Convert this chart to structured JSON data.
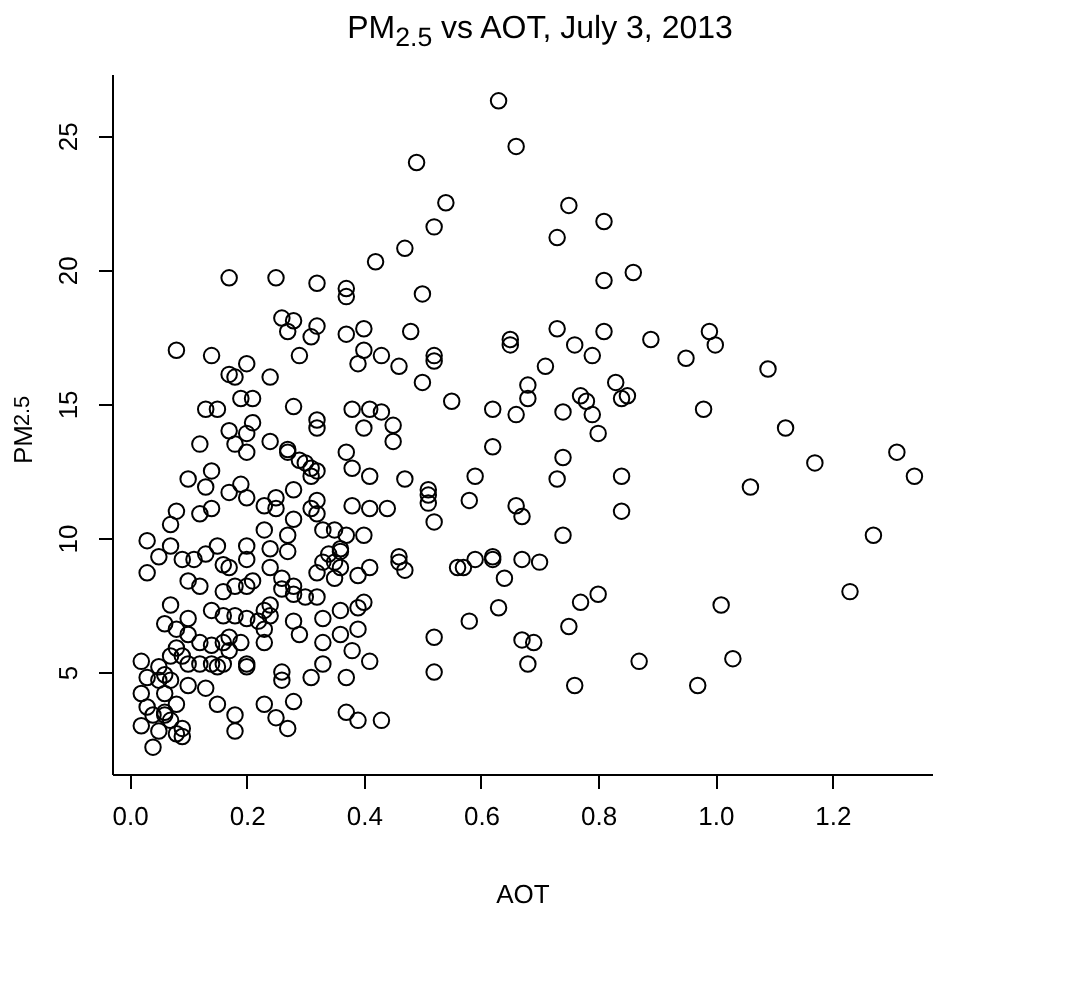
{
  "chart_data": {
    "type": "scatter",
    "title": "PM$_{2.5}$ vs AOT, July 3, 2013",
    "xlabel": "AOT",
    "ylabel": "PM$_{2.5}$",
    "marker": "circle",
    "grid": false,
    "xlim": [
      -0.03,
      1.37
    ],
    "ylim": [
      1.2,
      27.3
    ],
    "xticks": [
      {
        "value": 0,
        "label": "0.0"
      },
      {
        "value": 0.2,
        "label": "0.2"
      },
      {
        "value": 0.4,
        "label": "0.4"
      },
      {
        "value": 0.6,
        "label": "0.6"
      },
      {
        "value": 0.8,
        "label": "0.8"
      },
      {
        "value": 1,
        "label": "1.0"
      },
      {
        "value": 1.2,
        "label": "1.2"
      }
    ],
    "yticks": [
      5,
      10,
      15,
      20,
      25
    ],
    "series": [
      {
        "color": "#000000",
        "x": [
          0.63,
          0.66,
          0.49,
          0.54,
          0.52,
          0.42,
          0.47,
          0.5,
          0.75,
          0.73,
          0.81,
          0.81,
          0.37,
          0.37,
          0.37,
          0.4,
          0.39,
          0.4,
          0.43,
          0.46,
          0.48,
          0.5,
          0.52,
          0.52,
          0.55,
          0.65,
          0.65,
          0.73,
          0.76,
          0.79,
          0.81,
          0.71,
          0.68,
          0.68,
          0.66,
          0.62,
          0.74,
          0.77,
          0.78,
          0.79,
          0.8,
          0.83,
          0.38,
          0.41,
          0.43,
          0.4,
          0.45,
          0.45,
          0.37,
          0.38,
          0.41,
          0.47,
          0.38,
          0.41,
          0.44,
          0.51,
          0.51,
          0.51,
          0.52,
          0.62,
          0.59,
          0.58,
          0.66,
          0.67,
          0.74,
          0.73,
          0.74,
          0.35,
          0.36,
          0.37,
          0.4,
          0.39,
          0.41,
          0.46,
          0.46,
          0.47,
          0.56,
          0.57,
          0.59,
          0.62,
          0.62,
          0.64,
          0.67,
          0.7,
          0.63,
          0.58,
          0.52,
          0.52,
          0.67,
          0.69,
          0.68,
          0.75,
          0.77,
          0.8,
          0.76,
          0.36,
          0.39,
          0.4,
          0.39,
          0.36,
          0.38,
          0.41,
          0.37,
          0.37,
          0.39,
          0.43,
          0.86,
          0.89,
          0.95,
          0.99,
          1.0,
          1.09,
          0.84,
          0.85,
          0.98,
          1.12,
          1.17,
          1.31,
          1.34,
          1.06,
          0.84,
          0.84,
          1.27,
          1.23,
          1.01,
          0.87,
          1.03,
          0.97,
          0.17,
          0.25,
          0.32,
          0.08,
          0.14,
          0.26,
          0.28,
          0.27,
          0.32,
          0.31,
          0.2,
          0.17,
          0.18,
          0.24,
          0.29,
          0.19,
          0.21,
          0.13,
          0.15,
          0.28,
          0.32,
          0.32,
          0.21,
          0.17,
          0.2,
          0.18,
          0.2,
          0.12,
          0.24,
          0.27,
          0.27,
          0.29,
          0.3,
          0.31,
          0.32,
          0.31,
          0.1,
          0.14,
          0.13,
          0.19,
          0.17,
          0.2,
          0.23,
          0.25,
          0.28,
          0.32,
          0.08,
          0.12,
          0.14,
          0.07,
          0.03,
          0.05,
          0.03,
          0.07,
          0.09,
          0.11,
          0.13,
          0.15,
          0.16,
          0.17,
          0.2,
          0.2,
          0.1,
          0.12,
          0.16,
          0.18,
          0.2,
          0.21,
          0.24,
          0.27,
          0.27,
          0.24,
          0.23,
          0.25,
          0.26,
          0.26,
          0.28,
          0.3,
          0.32,
          0.28,
          0.07,
          0.06,
          0.08,
          0.1,
          0.1,
          0.14,
          0.16,
          0.18,
          0.2,
          0.22,
          0.23,
          0.24,
          0.24,
          0.23,
          0.23,
          0.28,
          0.29,
          0.33,
          0.33,
          0.17,
          0.19,
          0.12,
          0.14,
          0.16,
          0.17,
          0.08,
          0.09,
          0.1,
          0.07,
          0.12,
          0.14,
          0.15,
          0.16,
          0.2,
          0.2,
          0.02,
          0.03,
          0.05,
          0.05,
          0.06,
          0.1,
          0.13,
          0.15,
          0.02,
          0.03,
          0.02,
          0.04,
          0.06,
          0.06,
          0.08,
          0.07,
          0.09,
          0.08,
          0.09,
          0.04,
          0.05,
          0.06,
          0.07,
          0.26,
          0.26,
          0.28,
          0.23,
          0.25,
          0.27,
          0.18,
          0.18,
          0.31,
          0.33,
          0.33,
          0.34,
          0.36,
          0.32,
          0.35,
          0.28,
          0.31,
          0.32,
          0.35,
          0.36,
          0.33
        ],
        "values": [
          26.3,
          24.6,
          24.0,
          22.5,
          21.6,
          20.3,
          20.8,
          19.1,
          22.4,
          21.2,
          21.8,
          19.6,
          19.3,
          19.0,
          17.6,
          17.8,
          16.5,
          17.0,
          16.8,
          16.4,
          17.7,
          15.8,
          16.8,
          16.6,
          15.1,
          17.4,
          17.2,
          17.8,
          17.2,
          16.8,
          17.7,
          16.4,
          15.7,
          15.2,
          14.6,
          14.8,
          14.7,
          15.3,
          15.1,
          14.6,
          13.9,
          15.8,
          14.8,
          14.8,
          14.7,
          14.1,
          14.2,
          13.6,
          13.2,
          12.6,
          12.3,
          12.2,
          11.2,
          11.1,
          11.1,
          11.8,
          11.6,
          11.3,
          10.6,
          13.4,
          12.3,
          11.4,
          11.2,
          10.8,
          13.0,
          12.2,
          10.1,
          9.1,
          9.5,
          10.1,
          10.1,
          8.6,
          8.9,
          9.3,
          9.1,
          8.8,
          8.9,
          8.9,
          9.2,
          9.2,
          9.3,
          8.5,
          9.2,
          9.1,
          7.4,
          6.9,
          6.3,
          5.0,
          6.2,
          6.1,
          5.3,
          6.7,
          7.6,
          7.9,
          4.5,
          7.3,
          7.4,
          7.6,
          6.6,
          6.4,
          5.8,
          5.4,
          4.8,
          3.5,
          3.2,
          3.2,
          19.9,
          17.4,
          16.7,
          17.7,
          17.2,
          16.3,
          15.2,
          15.3,
          14.8,
          14.1,
          12.8,
          13.2,
          12.3,
          11.9,
          12.3,
          11.0,
          10.1,
          8.0,
          7.5,
          5.4,
          5.5,
          4.5,
          19.7,
          19.7,
          19.5,
          17.0,
          16.8,
          18.2,
          18.1,
          17.7,
          17.9,
          17.5,
          16.5,
          16.1,
          16.0,
          16.0,
          16.8,
          15.2,
          15.2,
          14.8,
          14.8,
          14.9,
          14.4,
          14.1,
          14.3,
          14.0,
          13.9,
          13.5,
          13.2,
          13.5,
          13.6,
          13.3,
          13.2,
          12.9,
          12.8,
          12.6,
          12.5,
          12.3,
          12.2,
          12.5,
          11.9,
          12.0,
          11.7,
          11.5,
          11.2,
          11.5,
          11.8,
          11.4,
          11.0,
          10.9,
          11.1,
          10.5,
          9.9,
          9.3,
          8.7,
          9.7,
          9.2,
          9.2,
          9.4,
          9.7,
          9.0,
          8.9,
          9.2,
          9.7,
          8.4,
          8.2,
          8.0,
          8.2,
          8.2,
          8.4,
          8.9,
          9.5,
          10.1,
          9.6,
          10.3,
          11.1,
          8.5,
          8.1,
          7.9,
          7.8,
          7.8,
          8.2,
          7.5,
          6.8,
          6.6,
          7.0,
          6.4,
          7.3,
          7.1,
          7.1,
          7.0,
          6.9,
          7.3,
          7.5,
          7.1,
          6.1,
          6.6,
          6.9,
          6.4,
          7.0,
          6.1,
          6.3,
          6.1,
          6.1,
          6.0,
          6.1,
          5.8,
          5.9,
          5.6,
          5.3,
          5.6,
          5.3,
          5.3,
          5.2,
          5.3,
          5.3,
          5.2,
          5.4,
          4.8,
          5.2,
          4.7,
          4.9,
          4.5,
          4.4,
          3.8,
          4.2,
          3.7,
          3.0,
          3.4,
          3.5,
          3.4,
          3.8,
          3.2,
          2.9,
          2.7,
          2.6,
          2.2,
          2.8,
          4.2,
          4.7,
          5.0,
          4.7,
          3.9,
          3.8,
          3.3,
          2.9,
          3.4,
          2.8,
          4.8,
          5.3,
          9.1,
          9.4,
          8.9,
          8.7,
          8.5,
          10.7,
          11.1,
          10.9,
          10.3,
          9.6,
          10.3
        ]
      }
    ]
  }
}
